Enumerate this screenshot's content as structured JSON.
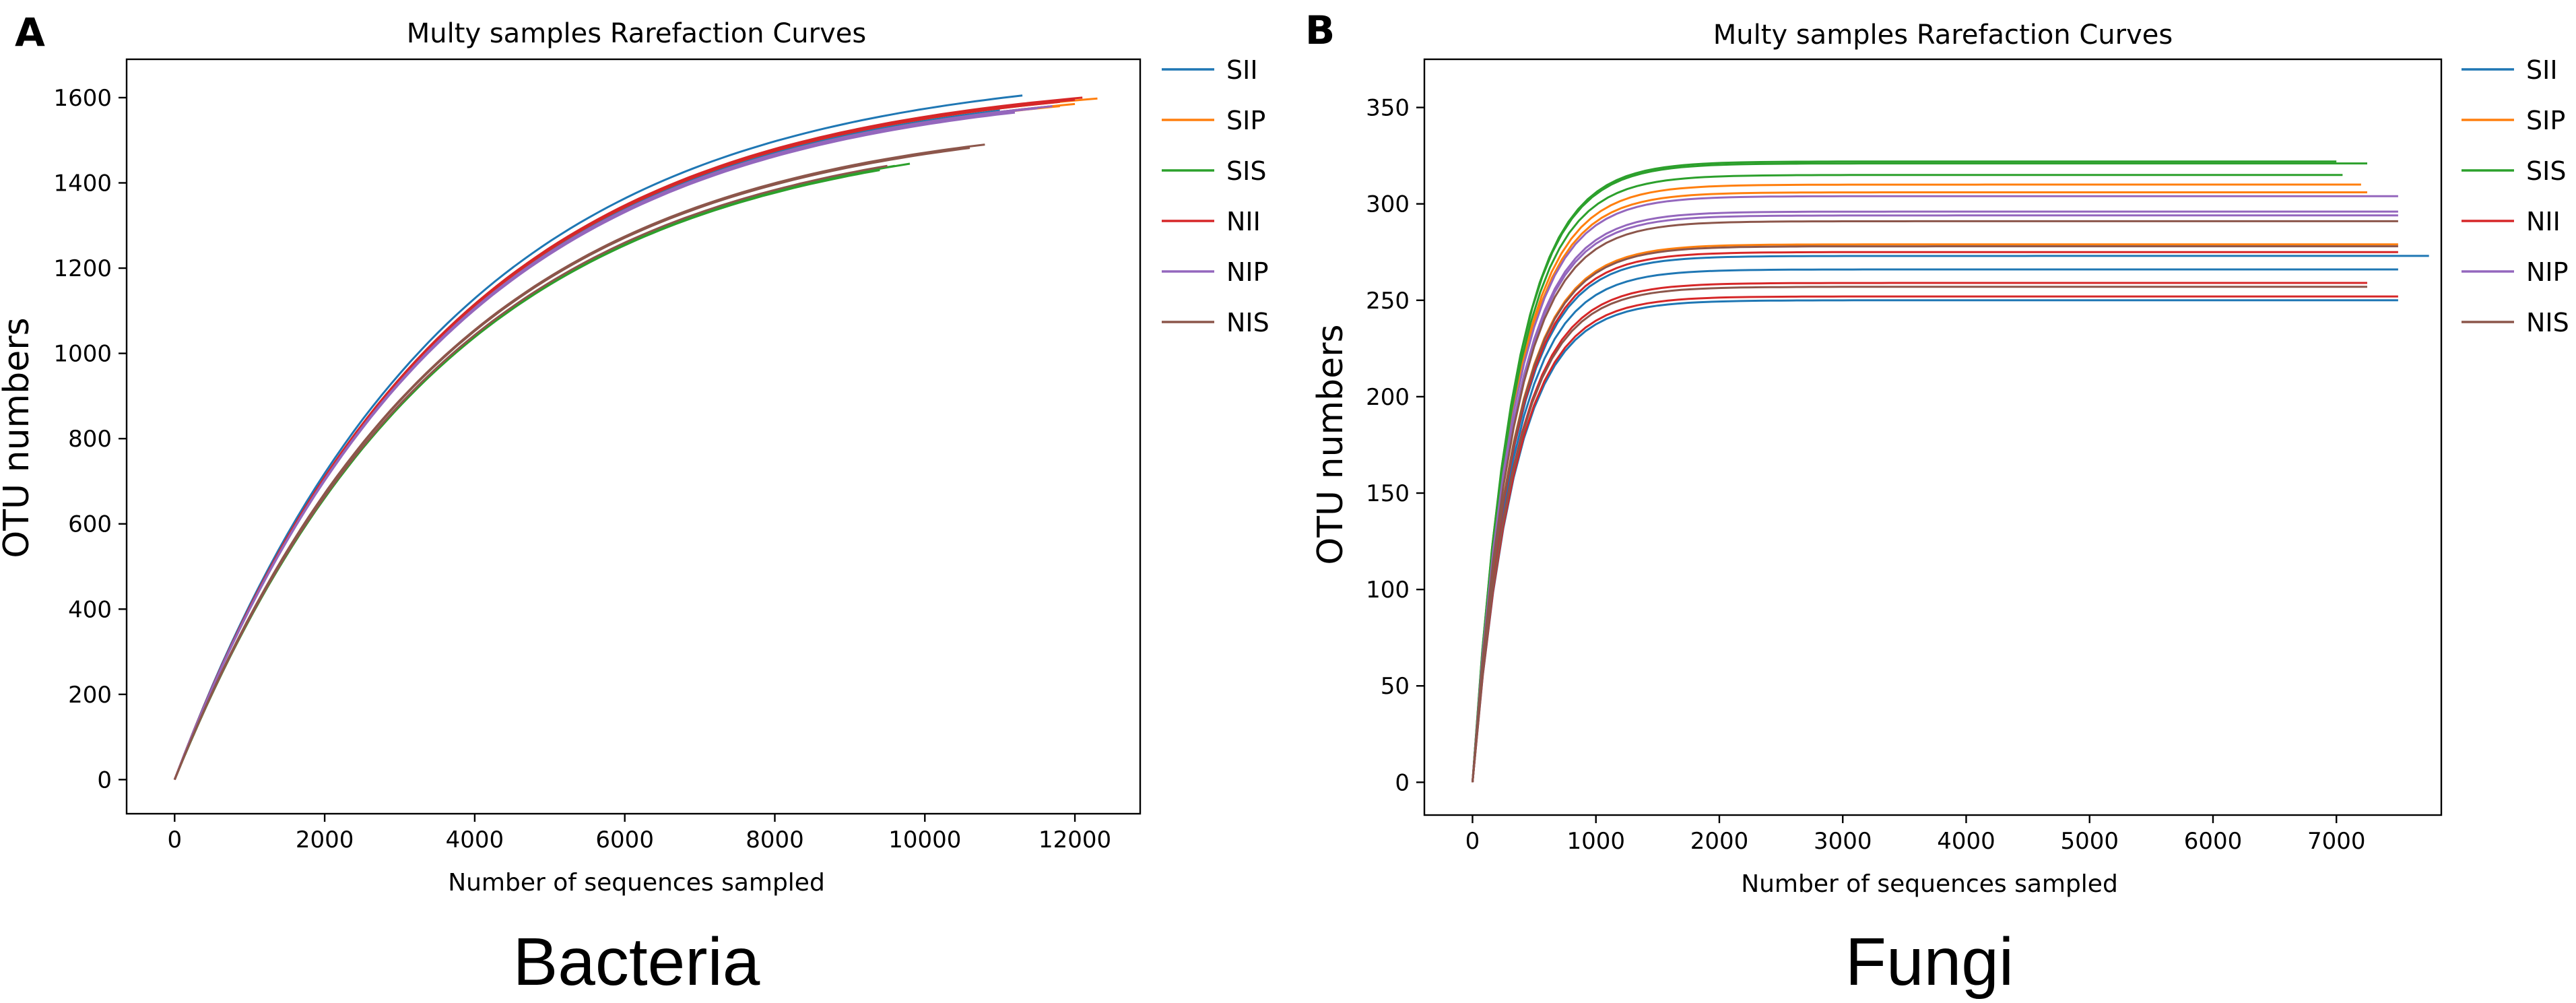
{
  "chart_data": [
    {
      "type": "line",
      "panel_letter": "A",
      "title": "Multy samples Rarefaction Curves",
      "xlabel": "Number of sequences sampled",
      "ylabel": "OTU numbers",
      "caption": "Bacteria",
      "xlim": [
        -640,
        12870
      ],
      "ylim": [
        -80,
        1690
      ],
      "xticks": [
        0,
        2000,
        4000,
        6000,
        8000,
        10000,
        12000
      ],
      "yticks": [
        0,
        200,
        400,
        600,
        800,
        1000,
        1200,
        1400,
        1600
      ],
      "legend_position": "outside-right",
      "grid": false,
      "series": [
        {
          "name": "SII",
          "color": "#1f77b4",
          "curves": [
            {
              "max_x": 11300,
              "max_y": 1605
            },
            {
              "max_x": 11000,
              "max_y": 1570
            },
            {
              "max_x": 11700,
              "max_y": 1580
            }
          ]
        },
        {
          "name": "SIP",
          "color": "#ff7f0e",
          "curves": [
            {
              "max_x": 12300,
              "max_y": 1598
            },
            {
              "max_x": 11800,
              "max_y": 1580
            },
            {
              "max_x": 12000,
              "max_y": 1585
            }
          ]
        },
        {
          "name": "SIS",
          "color": "#2ca02c",
          "curves": [
            {
              "max_x": 9600,
              "max_y": 1440
            },
            {
              "max_x": 9400,
              "max_y": 1430
            },
            {
              "max_x": 9800,
              "max_y": 1445
            }
          ]
        },
        {
          "name": "NII",
          "color": "#d62728",
          "curves": [
            {
              "max_x": 12100,
              "max_y": 1600
            },
            {
              "max_x": 11800,
              "max_y": 1590
            },
            {
              "max_x": 12000,
              "max_y": 1595
            }
          ]
        },
        {
          "name": "NIP",
          "color": "#9467bd",
          "curves": [
            {
              "max_x": 11500,
              "max_y": 1575
            },
            {
              "max_x": 11200,
              "max_y": 1565
            },
            {
              "max_x": 11700,
              "max_y": 1580
            }
          ]
        },
        {
          "name": "NIS",
          "color": "#8c564b",
          "curves": [
            {
              "max_x": 10800,
              "max_y": 1490
            },
            {
              "max_x": 10600,
              "max_y": 1482
            },
            {
              "max_x": 9500,
              "max_y": 1440
            }
          ]
        }
      ]
    },
    {
      "type": "line",
      "panel_letter": "B",
      "title": "Multy samples Rarefaction Curves",
      "xlabel": "Number of sequences sampled",
      "ylabel": "OTU numbers",
      "caption": "Fungi",
      "xlim": [
        -390,
        7850
      ],
      "ylim": [
        -17,
        375
      ],
      "xticks": [
        0,
        1000,
        2000,
        3000,
        4000,
        5000,
        6000,
        7000
      ],
      "yticks": [
        0,
        50,
        100,
        150,
        200,
        250,
        300,
        350
      ],
      "legend_position": "outside-right",
      "grid": false,
      "series": [
        {
          "name": "SII",
          "color": "#1f77b4",
          "curves": [
            {
              "max_x": 7500,
              "max_y": 250
            },
            {
              "max_x": 7500,
              "max_y": 266
            },
            {
              "max_x": 7750,
              "max_y": 273
            }
          ]
        },
        {
          "name": "SIP",
          "color": "#ff7f0e",
          "curves": [
            {
              "max_x": 7200,
              "max_y": 310
            },
            {
              "max_x": 7250,
              "max_y": 306
            },
            {
              "max_x": 7500,
              "max_y": 279
            }
          ]
        },
        {
          "name": "SIS",
          "color": "#2ca02c",
          "curves": [
            {
              "max_x": 7000,
              "max_y": 322
            },
            {
              "max_x": 7250,
              "max_y": 321
            },
            {
              "max_x": 7050,
              "max_y": 315
            }
          ]
        },
        {
          "name": "NII",
          "color": "#d62728",
          "curves": [
            {
              "max_x": 7250,
              "max_y": 259
            },
            {
              "max_x": 7500,
              "max_y": 252
            },
            {
              "max_x": 7500,
              "max_y": 275
            }
          ]
        },
        {
          "name": "NIP",
          "color": "#9467bd",
          "curves": [
            {
              "max_x": 7500,
              "max_y": 304
            },
            {
              "max_x": 7500,
              "max_y": 296
            },
            {
              "max_x": 7500,
              "max_y": 294
            }
          ]
        },
        {
          "name": "NIS",
          "color": "#8c564b",
          "curves": [
            {
              "max_x": 7500,
              "max_y": 291
            },
            {
              "max_x": 7500,
              "max_y": 278
            },
            {
              "max_x": 7250,
              "max_y": 257
            }
          ]
        }
      ]
    }
  ]
}
